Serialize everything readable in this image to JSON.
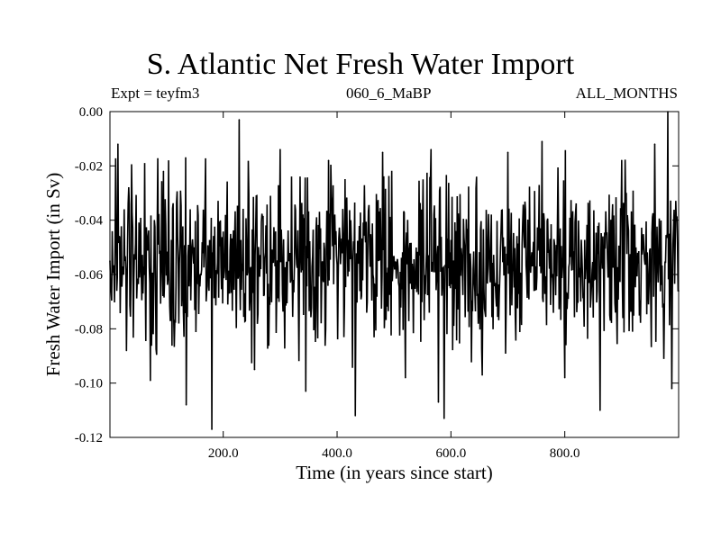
{
  "chart_data": {
    "type": "line",
    "title": "S. Atlantic Net Fresh Water Import",
    "subtitle_left": "Expt = teyfm3",
    "subtitle_center": "060_6_MaBP",
    "subtitle_right": "ALL_MONTHS",
    "xlabel": "Time (in years since start)",
    "ylabel": "Fresh Water Import (in Sv)",
    "xlim": [
      1,
      1000
    ],
    "ylim": [
      -0.12,
      0.0
    ],
    "x_ticks": [
      200,
      400,
      600,
      800
    ],
    "x_tick_labels": [
      "200.0",
      "400.0",
      "600.0",
      "800.0"
    ],
    "y_ticks": [
      0.0,
      -0.02,
      -0.04,
      -0.06,
      -0.08,
      -0.1,
      -0.12
    ],
    "y_tick_labels": [
      "0.00",
      "-0.02",
      "-0.04",
      "-0.06",
      "-0.08",
      "-0.10",
      "-0.12"
    ],
    "grid": false,
    "series": [
      {
        "name": "Net Fresh Water Import",
        "n_points": 1000,
        "mean": -0.055,
        "std_approx": 0.015,
        "notable_points": [
          {
            "x": 1,
            "y": -0.055
          },
          {
            "x": 15,
            "y": -0.012
          },
          {
            "x": 30,
            "y": -0.088
          },
          {
            "x": 72,
            "y": -0.099
          },
          {
            "x": 95,
            "y": -0.022
          },
          {
            "x": 135,
            "y": -0.108
          },
          {
            "x": 180,
            "y": -0.117
          },
          {
            "x": 228,
            "y": -0.003
          },
          {
            "x": 255,
            "y": -0.095
          },
          {
            "x": 300,
            "y": -0.014
          },
          {
            "x": 345,
            "y": -0.103
          },
          {
            "x": 385,
            "y": -0.018
          },
          {
            "x": 432,
            "y": -0.112
          },
          {
            "x": 480,
            "y": -0.015
          },
          {
            "x": 520,
            "y": -0.098
          },
          {
            "x": 565,
            "y": -0.014
          },
          {
            "x": 578,
            "y": -0.107
          },
          {
            "x": 588,
            "y": -0.113
          },
          {
            "x": 655,
            "y": -0.097
          },
          {
            "x": 700,
            "y": -0.015
          },
          {
            "x": 760,
            "y": -0.011
          },
          {
            "x": 800,
            "y": -0.098
          },
          {
            "x": 862,
            "y": -0.11
          },
          {
            "x": 900,
            "y": -0.018
          },
          {
            "x": 958,
            "y": -0.012
          },
          {
            "x": 981,
            "y": 0.0
          },
          {
            "x": 988,
            "y": -0.102
          },
          {
            "x": 1000,
            "y": -0.066
          }
        ]
      }
    ]
  }
}
